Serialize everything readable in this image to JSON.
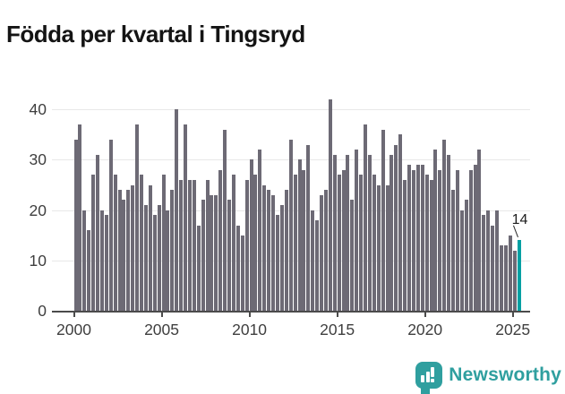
{
  "title": "Födda per kvartal i Tingsryd",
  "colors": {
    "bar": "#6d6a75",
    "highlight": "#00a0a3",
    "gridline": "#e8e8e8",
    "axis": "#4b4b4b",
    "tick_text": "#3f3f3f",
    "logo": "#2f9f9f"
  },
  "annotation": {
    "label": "14"
  },
  "branding": {
    "logo_text": "Newsworthy",
    "logo_icon": "newsworthy-bar-chart-bubble-icon"
  },
  "chart_data": {
    "type": "bar",
    "title": "Födda per kvartal i Tingsryd",
    "xlabel": "",
    "ylabel": "",
    "ylim": [
      0,
      44
    ],
    "grid": true,
    "legend": "none",
    "y_ticks": [
      0,
      10,
      20,
      30,
      40
    ],
    "x_tick_years": [
      2000,
      2005,
      2010,
      2015,
      2020,
      2025
    ],
    "x_tick_labels": [
      "2000",
      "2005",
      "2010",
      "2015",
      "2020",
      "2025"
    ],
    "categories": [
      "2000 Q1",
      "2000 Q2",
      "2000 Q3",
      "2000 Q4",
      "2001 Q1",
      "2001 Q2",
      "2001 Q3",
      "2001 Q4",
      "2002 Q1",
      "2002 Q2",
      "2002 Q3",
      "2002 Q4",
      "2003 Q1",
      "2003 Q2",
      "2003 Q3",
      "2003 Q4",
      "2004 Q1",
      "2004 Q2",
      "2004 Q3",
      "2004 Q4",
      "2005 Q1",
      "2005 Q2",
      "2005 Q3",
      "2005 Q4",
      "2006 Q1",
      "2006 Q2",
      "2006 Q3",
      "2006 Q4",
      "2007 Q1",
      "2007 Q2",
      "2007 Q3",
      "2007 Q4",
      "2008 Q1",
      "2008 Q2",
      "2008 Q3",
      "2008 Q4",
      "2009 Q1",
      "2009 Q2",
      "2009 Q3",
      "2009 Q4",
      "2010 Q1",
      "2010 Q2",
      "2010 Q3",
      "2010 Q4",
      "2011 Q1",
      "2011 Q2",
      "2011 Q3",
      "2011 Q4",
      "2012 Q1",
      "2012 Q2",
      "2012 Q3",
      "2012 Q4",
      "2013 Q1",
      "2013 Q2",
      "2013 Q3",
      "2013 Q4",
      "2014 Q1",
      "2014 Q2",
      "2014 Q3",
      "2014 Q4",
      "2015 Q1",
      "2015 Q2",
      "2015 Q3",
      "2015 Q4",
      "2016 Q1",
      "2016 Q2",
      "2016 Q3",
      "2016 Q4",
      "2017 Q1",
      "2017 Q2",
      "2017 Q3",
      "2017 Q4",
      "2018 Q1",
      "2018 Q2",
      "2018 Q3",
      "2018 Q4",
      "2019 Q1",
      "2019 Q2",
      "2019 Q3",
      "2019 Q4",
      "2020 Q1",
      "2020 Q2",
      "2020 Q3",
      "2020 Q4",
      "2021 Q1",
      "2021 Q2",
      "2021 Q3",
      "2021 Q4",
      "2022 Q1",
      "2022 Q2",
      "2022 Q3",
      "2022 Q4",
      "2023 Q1",
      "2023 Q2",
      "2023 Q3",
      "2023 Q4",
      "2024 Q1",
      "2024 Q2",
      "2024 Q3",
      "2024 Q4",
      "2025 Q1",
      "2025 Q2"
    ],
    "values": [
      34,
      37,
      20,
      16,
      27,
      31,
      20,
      19,
      34,
      27,
      24,
      22,
      24,
      25,
      37,
      27,
      21,
      25,
      19,
      21,
      27,
      20,
      24,
      40,
      26,
      37,
      26,
      26,
      17,
      22,
      26,
      23,
      23,
      28,
      36,
      22,
      27,
      17,
      15,
      26,
      30,
      27,
      32,
      25,
      24,
      23,
      19,
      21,
      24,
      34,
      27,
      30,
      28,
      33,
      20,
      18,
      23,
      24,
      42,
      31,
      27,
      28,
      31,
      22,
      32,
      27,
      37,
      31,
      27,
      25,
      36,
      25,
      31,
      33,
      35,
      26,
      29,
      28,
      29,
      29,
      27,
      26,
      32,
      28,
      34,
      31,
      24,
      28,
      20,
      22,
      28,
      29,
      32,
      19,
      20,
      17,
      20,
      13,
      13,
      15,
      12,
      14
    ],
    "highlight": {
      "index": 101,
      "category": "2025 Q2",
      "value": 14,
      "label": "14"
    }
  }
}
